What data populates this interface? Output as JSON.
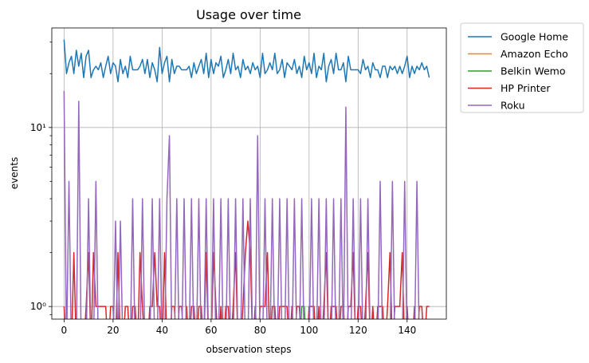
{
  "chart_data": {
    "type": "line",
    "title": "Usage over time",
    "xlabel": "observation steps",
    "ylabel": "events",
    "xscale": "linear",
    "yscale": "log",
    "xlim": [
      -5,
      156
    ],
    "ylim": [
      0.85,
      36
    ],
    "xticks": [
      0,
      20,
      40,
      60,
      80,
      100,
      120,
      140
    ],
    "xtick_labels": [
      "0",
      "20",
      "40",
      "60",
      "80",
      "100",
      "120",
      "140"
    ],
    "yticks": [
      1,
      10
    ],
    "ytick_labels": [
      "10⁰",
      "10¹"
    ],
    "grid": true,
    "legend_position": "outside-right-top",
    "colors": {
      "google_home": "#1f77b4",
      "amazon_echo": "#ff7f0e",
      "belkin_wemo": "#2ca02c",
      "hp_printer": "#d62728",
      "roku": "#9467bd"
    },
    "x": [
      0,
      1,
      2,
      3,
      4,
      5,
      6,
      7,
      8,
      9,
      10,
      11,
      12,
      13,
      14,
      15,
      16,
      17,
      18,
      19,
      20,
      21,
      22,
      23,
      24,
      25,
      26,
      27,
      28,
      29,
      30,
      31,
      32,
      33,
      34,
      35,
      36,
      37,
      38,
      39,
      40,
      41,
      42,
      43,
      44,
      45,
      46,
      47,
      48,
      49,
      50,
      51,
      52,
      53,
      54,
      55,
      56,
      57,
      58,
      59,
      60,
      61,
      62,
      63,
      64,
      65,
      66,
      67,
      68,
      69,
      70,
      71,
      72,
      73,
      74,
      75,
      76,
      77,
      78,
      79,
      80,
      81,
      82,
      83,
      84,
      85,
      86,
      87,
      88,
      89,
      90,
      91,
      92,
      93,
      94,
      95,
      96,
      97,
      98,
      99,
      100,
      101,
      102,
      103,
      104,
      105,
      106,
      107,
      108,
      109,
      110,
      111,
      112,
      113,
      114,
      115,
      116,
      117,
      118,
      119,
      120,
      121,
      122,
      123,
      124,
      125,
      126,
      127,
      128,
      129,
      130,
      131,
      132,
      133,
      134,
      135,
      136,
      137,
      138,
      139,
      140,
      141,
      142,
      143,
      144,
      145,
      146,
      147,
      148,
      149
    ],
    "series": [
      {
        "name": "Google Home",
        "color": "#1f77b4",
        "values": [
          31,
          20,
          23,
          25,
          20,
          27,
          22,
          26,
          19,
          25,
          27,
          19,
          21,
          22,
          21,
          23,
          19,
          22,
          25,
          20,
          23,
          22,
          18,
          24,
          20,
          22,
          19,
          25,
          21,
          21,
          21,
          22,
          24,
          20,
          24,
          19,
          23,
          21,
          18,
          28,
          20,
          23,
          25,
          18,
          24,
          20,
          22,
          22,
          21,
          21,
          21,
          22,
          19,
          23,
          20,
          22,
          24,
          20,
          26,
          19,
          24,
          20,
          23,
          22,
          25,
          19,
          21,
          24,
          20,
          26,
          21,
          22,
          19,
          24,
          21,
          22,
          20,
          23,
          21,
          22,
          19,
          26,
          20,
          21,
          23,
          21,
          26,
          20,
          21,
          24,
          19,
          23,
          22,
          21,
          24,
          20,
          22,
          19,
          25,
          21,
          23,
          20,
          26,
          19,
          22,
          21,
          26,
          18,
          22,
          24,
          20,
          26,
          21,
          21,
          23,
          18,
          25,
          21,
          21,
          21,
          21,
          20,
          24,
          21,
          22,
          19,
          23,
          21,
          21,
          19,
          22,
          22,
          19,
          22,
          21,
          22,
          20,
          22,
          20,
          22,
          25,
          19,
          22,
          20,
          22,
          21,
          23,
          21,
          22,
          19
        ]
      },
      {
        "name": "Amazon Echo",
        "color": "#ff7f0e",
        "values": [
          0,
          0,
          0,
          0,
          0,
          0,
          0,
          0,
          0,
          0,
          0,
          0,
          0,
          0,
          0,
          0,
          0,
          0,
          0,
          0,
          0,
          0,
          0,
          0,
          0,
          0,
          0,
          0,
          0,
          0,
          0,
          0,
          0,
          0,
          0,
          0,
          0,
          0,
          0,
          0,
          0,
          0,
          0,
          0,
          0,
          0,
          0,
          0,
          0,
          0,
          0,
          0,
          0,
          0,
          0,
          0,
          0,
          0,
          0,
          0,
          0,
          0,
          0,
          0,
          0,
          0,
          0,
          0,
          0,
          0,
          0,
          0,
          0,
          0,
          0,
          0,
          0,
          0,
          0,
          0,
          0,
          0,
          0,
          0,
          0,
          0,
          0,
          0,
          0,
          0,
          0,
          0,
          0,
          0,
          0,
          0,
          0,
          0,
          0,
          0,
          0,
          0,
          0,
          0,
          0,
          0,
          0,
          0,
          0,
          0,
          0,
          0,
          0,
          0,
          0,
          0,
          0,
          0,
          0,
          0,
          0,
          0,
          0,
          0,
          0,
          0,
          0,
          0,
          0,
          0,
          0,
          0,
          0,
          0,
          0,
          0,
          0,
          0,
          0,
          0,
          0,
          0,
          0,
          0,
          0,
          0,
          0,
          0,
          0,
          0
        ]
      },
      {
        "name": "Belkin Wemo",
        "color": "#2ca02c",
        "values": [
          0,
          0,
          0,
          0,
          0,
          0,
          0,
          0,
          0,
          0,
          0,
          0,
          0,
          0,
          0,
          0,
          0,
          0,
          0,
          0,
          0,
          0,
          0,
          0,
          0,
          0,
          0,
          0,
          0,
          0,
          0,
          0,
          0,
          0,
          0,
          0,
          0,
          0,
          0,
          0,
          0,
          0,
          0,
          0,
          0,
          0,
          0,
          0,
          0,
          0,
          0,
          0,
          0,
          0,
          0,
          0,
          0,
          0,
          0,
          0,
          0,
          0,
          0,
          0,
          0,
          0,
          0,
          0,
          0,
          0,
          0,
          0,
          0,
          0,
          0,
          0,
          0,
          0,
          0,
          0,
          0,
          0,
          0,
          0,
          0,
          0,
          0,
          0,
          0,
          0,
          0,
          0,
          0,
          0,
          0,
          0,
          0,
          1,
          1,
          0,
          0,
          0,
          0,
          0,
          0,
          0,
          0,
          0,
          0,
          0,
          0,
          0,
          0,
          0,
          0,
          0,
          0,
          0,
          0,
          0,
          0,
          0,
          0,
          0,
          0,
          0,
          0,
          0,
          0,
          0,
          0,
          0,
          0,
          0,
          0,
          0,
          0,
          0,
          0,
          0,
          0,
          0,
          0,
          0,
          0,
          0,
          0,
          0,
          0,
          0
        ]
      },
      {
        "name": "HP Printer",
        "color": "#d62728",
        "values": [
          1,
          0,
          0,
          0,
          2,
          0,
          0,
          0,
          0,
          1,
          2,
          0,
          2,
          1,
          1,
          1,
          1,
          1,
          0,
          1,
          1,
          0,
          2,
          0,
          0,
          1,
          1,
          0,
          1,
          1,
          0,
          2,
          1,
          0,
          0,
          1,
          1,
          2,
          1,
          1,
          0,
          2,
          0,
          0,
          1,
          1,
          0,
          1,
          1,
          0,
          1,
          0,
          1,
          1,
          0,
          1,
          1,
          0,
          2,
          0,
          0,
          2,
          1,
          0,
          1,
          0,
          1,
          1,
          0,
          1,
          2,
          0,
          0,
          1,
          2,
          3,
          2,
          0,
          1,
          0,
          1,
          1,
          1,
          2,
          0,
          1,
          1,
          0,
          1,
          1,
          1,
          1,
          0,
          1,
          0,
          1,
          1,
          0,
          0,
          0,
          1,
          1,
          1,
          0,
          1,
          0,
          1,
          2,
          0,
          1,
          1,
          1,
          0,
          1,
          1,
          0,
          1,
          1,
          2,
          0,
          1,
          1,
          0,
          1,
          2,
          0,
          1,
          0,
          1,
          1,
          1,
          0,
          1,
          2,
          0,
          1,
          1,
          1,
          2,
          0,
          1,
          0,
          0,
          1,
          0,
          1,
          1,
          0,
          1,
          1
        ]
      },
      {
        "name": "Roku",
        "color": "#9467bd",
        "values": [
          16,
          0,
          5,
          0,
          0,
          0,
          14,
          0,
          0,
          0,
          4,
          0,
          0,
          5,
          0,
          0,
          0,
          0,
          0,
          0,
          0,
          3,
          0,
          3,
          0,
          0,
          0,
          0,
          4,
          0,
          0,
          0,
          4,
          0,
          0,
          0,
          4,
          0,
          0,
          4,
          0,
          0,
          4,
          9,
          0,
          0,
          4,
          0,
          0,
          4,
          0,
          0,
          4,
          0,
          0,
          4,
          0,
          0,
          4,
          0,
          0,
          4,
          0,
          0,
          4,
          0,
          0,
          4,
          0,
          0,
          4,
          0,
          0,
          4,
          0,
          0,
          4,
          0,
          0,
          9,
          0,
          0,
          4,
          0,
          0,
          4,
          0,
          0,
          4,
          0,
          0,
          4,
          0,
          0,
          4,
          0,
          0,
          4,
          0,
          0,
          0,
          4,
          0,
          0,
          4,
          0,
          0,
          4,
          0,
          0,
          4,
          0,
          0,
          4,
          0,
          13,
          0,
          0,
          4,
          0,
          0,
          4,
          0,
          0,
          4,
          0,
          0,
          0,
          0,
          5,
          0,
          0,
          0,
          0,
          5,
          0,
          0,
          0,
          0,
          5,
          0,
          0,
          0,
          0,
          5,
          0,
          0,
          0,
          0,
          0
        ]
      }
    ]
  }
}
